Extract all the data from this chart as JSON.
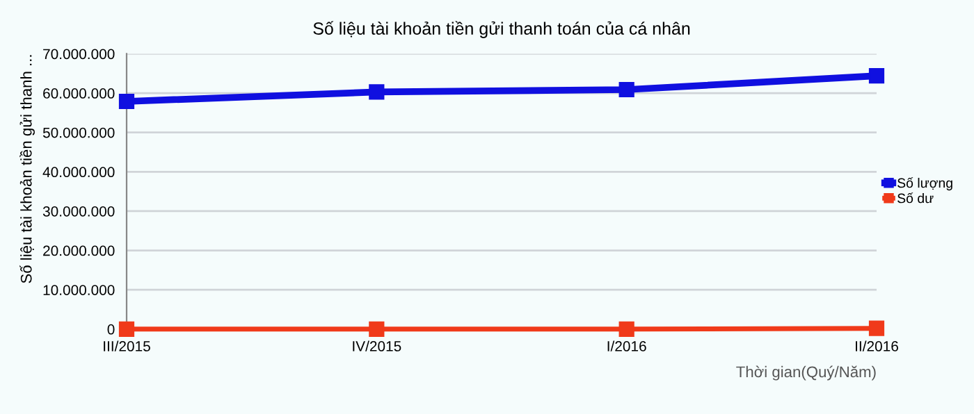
{
  "chart_data": {
    "type": "line",
    "title": "Số liệu tài khoản tiền gửi thanh toán của cá nhân",
    "xlabel": "Thời gian(Quý/Năm)",
    "ylabel": "Số liệu tài khoản tiền gửi thanh ...",
    "categories": [
      "III/2015",
      "IV/2015",
      "I/2016",
      "II/2016"
    ],
    "series": [
      {
        "name": "Số lượng",
        "color": "#1010e0",
        "values": [
          57900000,
          60300000,
          60900000,
          64400000
        ]
      },
      {
        "name": "Số dư",
        "color": "#f03a1a",
        "values": [
          0,
          0,
          0,
          200000
        ]
      }
    ],
    "ylim": [
      0,
      70000000
    ],
    "yticks": [
      {
        "value": 0,
        "label": "0"
      },
      {
        "value": 10000000,
        "label": "10.000.000"
      },
      {
        "value": 20000000,
        "label": "20.000.000"
      },
      {
        "value": 30000000,
        "label": "30.000.000"
      },
      {
        "value": 40000000,
        "label": "40.000.000"
      },
      {
        "value": 50000000,
        "label": "50.000.000"
      },
      {
        "value": 60000000,
        "label": "60.000.000"
      },
      {
        "value": 70000000,
        "label": "70.000.000"
      }
    ],
    "grid": "y",
    "legend": "right",
    "marker": "square",
    "line_style": "solid"
  }
}
